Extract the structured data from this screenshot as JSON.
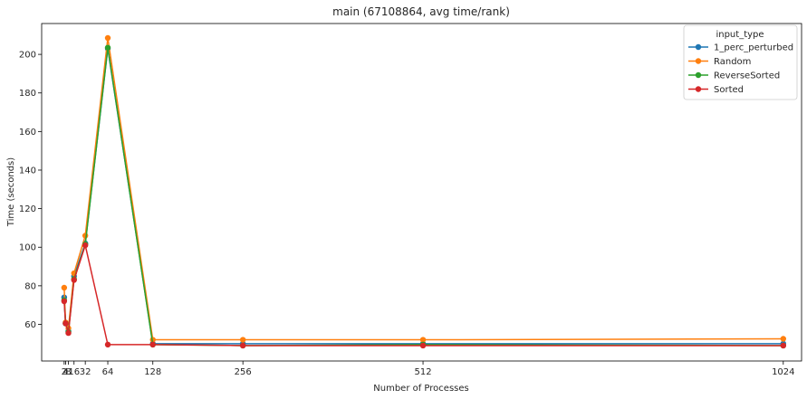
{
  "chart_data": {
    "type": "line",
    "title": "main (67108864, avg time/rank)",
    "xlabel": "Number of Processes",
    "ylabel": "Time (seconds)",
    "x": [
      2,
      4,
      8,
      16,
      32,
      64,
      128,
      256,
      512,
      1024
    ],
    "x_tick_labels": [
      "2",
      "4",
      "8",
      "16",
      "32",
      "64",
      "128",
      "256",
      "512",
      "1024"
    ],
    "xlim": [
      -30,
      1050
    ],
    "ylim": [
      41,
      216
    ],
    "y_ticks": [
      60,
      80,
      100,
      120,
      140,
      160,
      180,
      200
    ],
    "grid": false,
    "legend": {
      "title": "input_type",
      "position": "top-right"
    },
    "series": [
      {
        "name": "1_perc_perturbed",
        "color": "#1f77b4",
        "values": [
          74,
          60.5,
          56.5,
          85,
          102,
          203,
          50,
          50,
          50,
          50
        ]
      },
      {
        "name": "Random",
        "color": "#ff7f0e",
        "values": [
          79,
          61,
          58,
          86.5,
          106,
          208.5,
          52,
          52,
          52,
          52.5
        ]
      },
      {
        "name": "ReverseSorted",
        "color": "#2ca02c",
        "values": [
          72.5,
          60.5,
          56,
          83.5,
          101.5,
          203.5,
          49.5,
          49,
          49.5,
          49
        ]
      },
      {
        "name": "Sorted",
        "color": "#d62728",
        "values": [
          72,
          60.5,
          55.5,
          83,
          101,
          49.5,
          49.5,
          49,
          49,
          49
        ]
      }
    ]
  }
}
